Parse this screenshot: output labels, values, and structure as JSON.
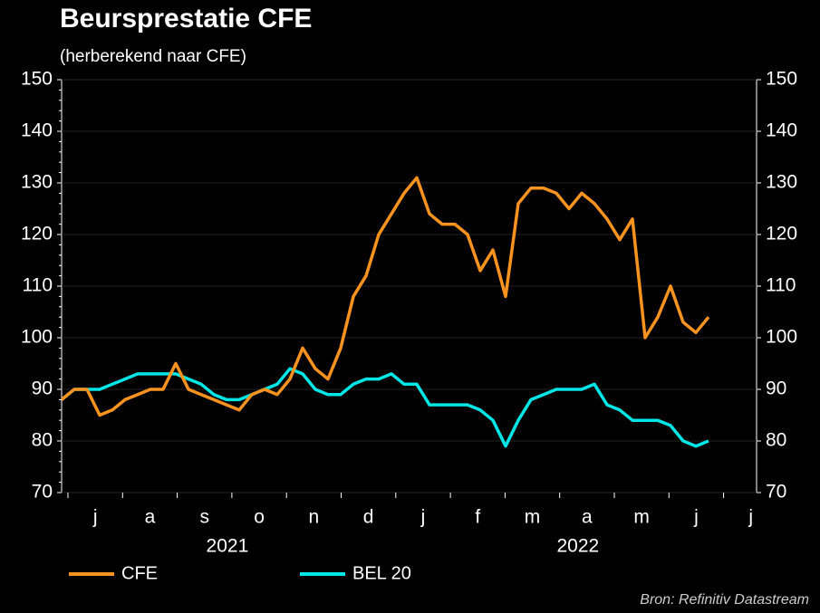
{
  "chart_data": {
    "type": "line",
    "title": "Beursprestatie  CFE",
    "subtitle": "(herberekend naar CFE)",
    "source": "Bron: Refinitiv Datastream",
    "months": [
      "j",
      "a",
      "s",
      "o",
      "n",
      "d",
      "j",
      "f",
      "m",
      "a",
      "m",
      "j",
      "j"
    ],
    "years": [
      "2021",
      "2022"
    ],
    "ylim": [
      70,
      150
    ],
    "yticks": [
      70,
      80,
      90,
      100,
      110,
      120,
      130,
      140,
      150
    ],
    "series": [
      {
        "name": "CFE",
        "color": "#f7931e",
        "values": [
          88,
          90,
          90,
          85,
          86,
          88,
          89,
          90,
          90,
          95,
          90,
          89,
          88,
          87,
          86,
          89,
          90,
          89,
          92,
          98,
          94,
          92,
          98,
          108,
          112,
          120,
          124,
          128,
          131,
          124,
          122,
          122,
          120,
          113,
          117,
          108,
          126,
          129,
          129,
          128,
          125,
          128,
          126,
          123,
          119,
          123,
          100,
          104,
          110,
          103,
          101,
          104
        ]
      },
      {
        "name": "BEL 20",
        "color": "#00e5e5",
        "values": [
          88,
          90,
          90,
          90,
          91,
          92,
          93,
          93,
          93,
          93,
          92,
          91,
          89,
          88,
          88,
          89,
          90,
          91,
          94,
          93,
          90,
          89,
          89,
          91,
          92,
          92,
          93,
          91,
          91,
          87,
          87,
          87,
          87,
          86,
          84,
          79,
          84,
          88,
          89,
          90,
          90,
          90,
          91,
          87,
          86,
          84,
          84,
          84,
          83,
          80,
          79,
          80
        ]
      }
    ]
  }
}
